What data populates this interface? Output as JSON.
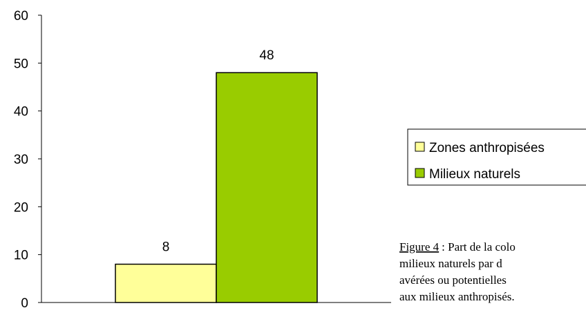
{
  "chart_data": {
    "type": "bar",
    "categories": [
      null
    ],
    "series": [
      {
        "name": "Zones anthropisées",
        "color": "#ffff99",
        "values": [
          8
        ]
      },
      {
        "name": "Milieux naturels",
        "color": "#99cc00",
        "values": [
          48
        ]
      }
    ],
    "ylim": [
      0,
      60
    ],
    "yticks": [
      0,
      10,
      20,
      30,
      40,
      50,
      60
    ],
    "legend": "right",
    "caption": {
      "label": "Figure 4",
      "lines": [
        ": Part de la colo",
        "milieux naturels par d",
        "avérées ou potentielles",
        "aux milieux anthropisés."
      ]
    }
  }
}
